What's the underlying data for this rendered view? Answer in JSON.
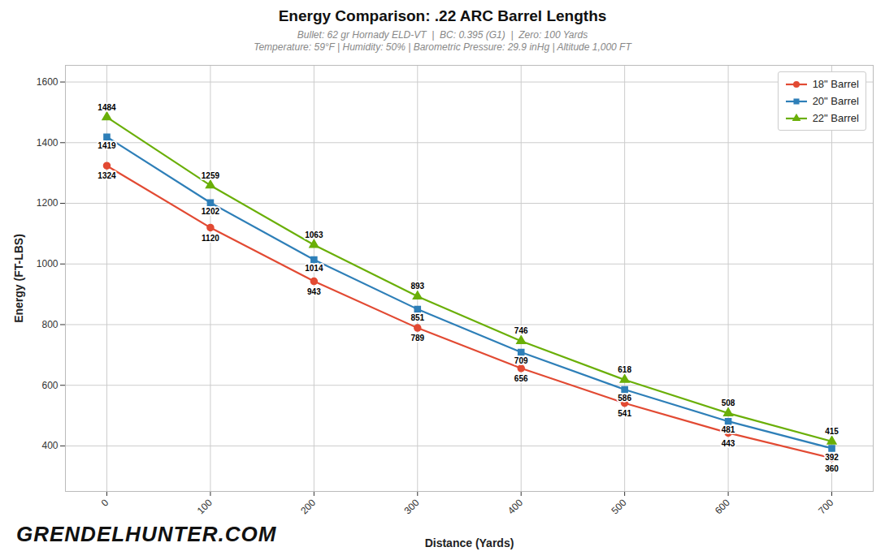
{
  "chart_data": {
    "type": "line",
    "title": "Energy Comparison: .22 ARC Barrel Lengths",
    "subtitle": [
      "Bullet: 62 gr Hornady ELD-VT  |  BC: 0.395 (G1)  |  Zero: 100 Yards",
      "Temperature: 59°F | Humidity: 50% | Barometric Pressure: 29.9 inHg | Altitude 1,000 FT"
    ],
    "x_label": "Distance (Yards)",
    "y_label": "Energy (FT-LBS)",
    "x": [
      0,
      100,
      200,
      300,
      400,
      500,
      600,
      700
    ],
    "series": [
      {
        "name": "18\" Barrel",
        "color": "#e24a33",
        "marker": "circle",
        "values": [
          1324,
          1120,
          943,
          789,
          656,
          541,
          443,
          360
        ]
      },
      {
        "name": "20\" Barrel",
        "color": "#2e7fb8",
        "marker": "square",
        "values": [
          1419,
          1202,
          1014,
          851,
          709,
          586,
          481,
          392
        ]
      },
      {
        "name": "22\" Barrel",
        "color": "#6aaf08",
        "marker": "triangle",
        "values": [
          1484,
          1259,
          1063,
          893,
          746,
          618,
          508,
          415
        ]
      }
    ],
    "xlim": [
      -40,
      740
    ],
    "xticks": [
      0,
      100,
      200,
      300,
      400,
      500,
      600,
      700
    ],
    "ylim": [
      250,
      1655
    ],
    "yticks": [
      400,
      600,
      800,
      1000,
      1200,
      1400,
      1600
    ],
    "grid": true,
    "legend": "top-right",
    "data_labels": true,
    "annotations": [
      "GRENDELHUNTER.COM"
    ]
  }
}
